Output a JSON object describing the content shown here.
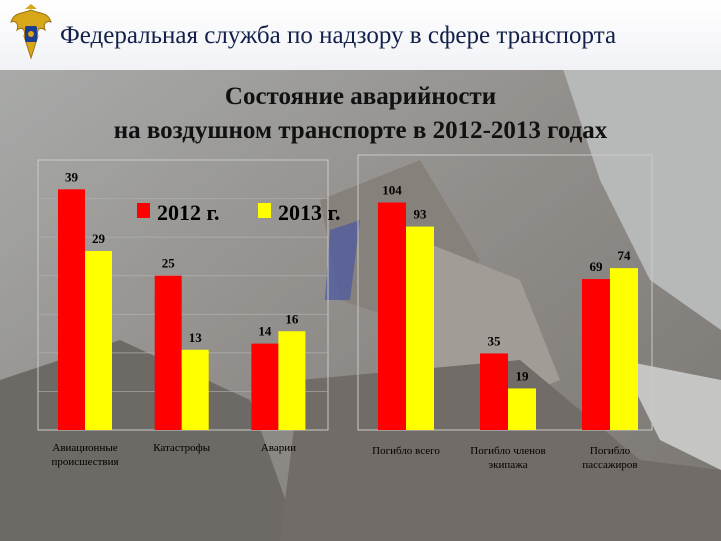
{
  "header": {
    "agency": "Федеральная служба по надзору в сфере транспорта"
  },
  "title": {
    "line1": "Состояние аварийности",
    "line2": "на воздушном транспорте в 2012-2013 годах"
  },
  "colors": {
    "series_2012": "#ff0000",
    "series_2013": "#ffff00"
  },
  "chart_data": [
    {
      "type": "bar",
      "categories": [
        "Авиационные происшествия",
        "Катастрофы",
        "Аварии"
      ],
      "series": [
        {
          "name": "2012 г.",
          "values": [
            39,
            25,
            14
          ]
        },
        {
          "name": "2013 г.",
          "values": [
            29,
            13,
            16
          ]
        }
      ],
      "legend": "top-right",
      "grid": true
    },
    {
      "type": "bar",
      "categories": [
        "Погибло всего",
        "Погибло членов экипажа",
        "Погибло пассажиров"
      ],
      "series": [
        {
          "name": "2012 г.",
          "values": [
            104,
            35,
            69
          ]
        },
        {
          "name": "2013 г.",
          "values": [
            93,
            19,
            74
          ]
        }
      ],
      "grid": false
    }
  ]
}
